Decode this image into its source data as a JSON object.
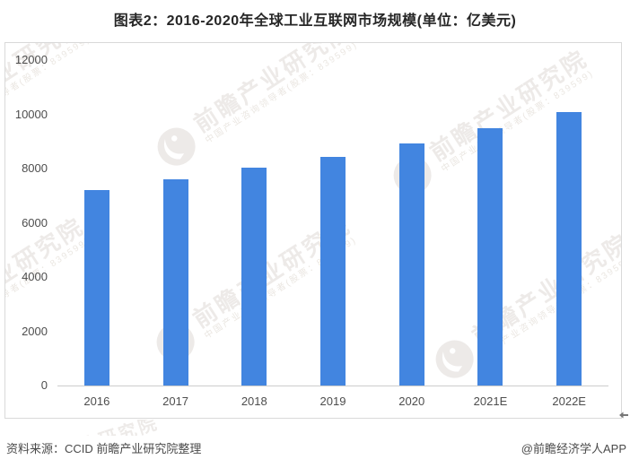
{
  "page_title": "图表2：2016-2020年全球工业互联网市场规模(单位：亿美元)",
  "chart_data": {
    "type": "bar",
    "title": "图表2：2016-2020年全球工业互联网市场规模(单位：亿美元)",
    "unit_label": "亿美元",
    "categories": [
      "2016",
      "2017",
      "2018",
      "2019",
      "2020",
      "2021E",
      "2022E"
    ],
    "values": [
      7210,
      7610,
      8050,
      8430,
      8930,
      9500,
      10080
    ],
    "ylim": [
      0,
      12000
    ],
    "yticks": [
      0,
      2000,
      4000,
      6000,
      8000,
      10000,
      12000
    ],
    "xlabel": "",
    "ylabel": "",
    "grid": false,
    "legend": false,
    "bar_color": "#4285e0"
  },
  "footer": {
    "source": "资料来源：CCID 前瞻产业研究院整理",
    "credit": "@前瞻经济学人APP"
  },
  "watermark": {
    "brand": "前瞻产业研究院",
    "tagline": "中国产业咨询领导者(股票：839599)"
  },
  "colors": {
    "bar": "#4285e0",
    "panel_border": "#d9d9d9",
    "axis_line": "#cccccc",
    "axis_text": "#4d4d4d",
    "title_text": "#262626",
    "footer_text": "#4a4a4a"
  }
}
